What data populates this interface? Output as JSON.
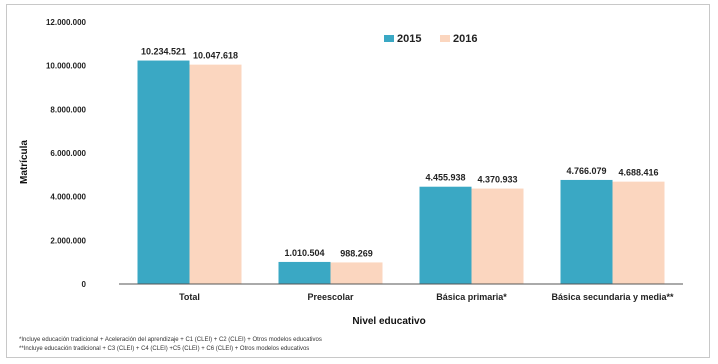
{
  "chart_data": {
    "type": "bar",
    "title": "",
    "xlabel": "Nivel educativo",
    "ylabel": "Matrícula",
    "ylim": [
      0,
      12000000
    ],
    "y_ticks": [
      "0",
      "2.000.000",
      "4.000.000",
      "6.000.000",
      "8.000.000",
      "10.000.000",
      "12.000.000"
    ],
    "y_tick_values": [
      0,
      2000000,
      4000000,
      6000000,
      8000000,
      10000000,
      12000000
    ],
    "categories": [
      "Total",
      "Preescolar",
      "Básica primaria*",
      "Básica secundaria y media**"
    ],
    "series": [
      {
        "name": "2015",
        "color": "#3aa8c4",
        "values": [
          10234521,
          1010504,
          4455938,
          4766079
        ],
        "labels": [
          "10.234.521",
          "1.010.504",
          "4.455.938",
          "4.766.079"
        ]
      },
      {
        "name": "2016",
        "color": "#fbd6bf",
        "values": [
          10047618,
          988269,
          4370933,
          4688416
        ],
        "labels": [
          "10.047.618",
          "988.269",
          "4.370.933",
          "4.688.416"
        ]
      }
    ],
    "legend_position": "top-right",
    "grid": false,
    "footnotes": [
      "*Incluye educación tradicional + Aceleración del aprendizaje + C1 (CLEI) + C2 (CLEI) + Otros modelos educativos",
      "**Incluye educación tradicional + C3 (CLEI) + C4 (CLEI) +C5 (CLEI) + C6 (CLEI) + Otros modelos educativos"
    ]
  }
}
